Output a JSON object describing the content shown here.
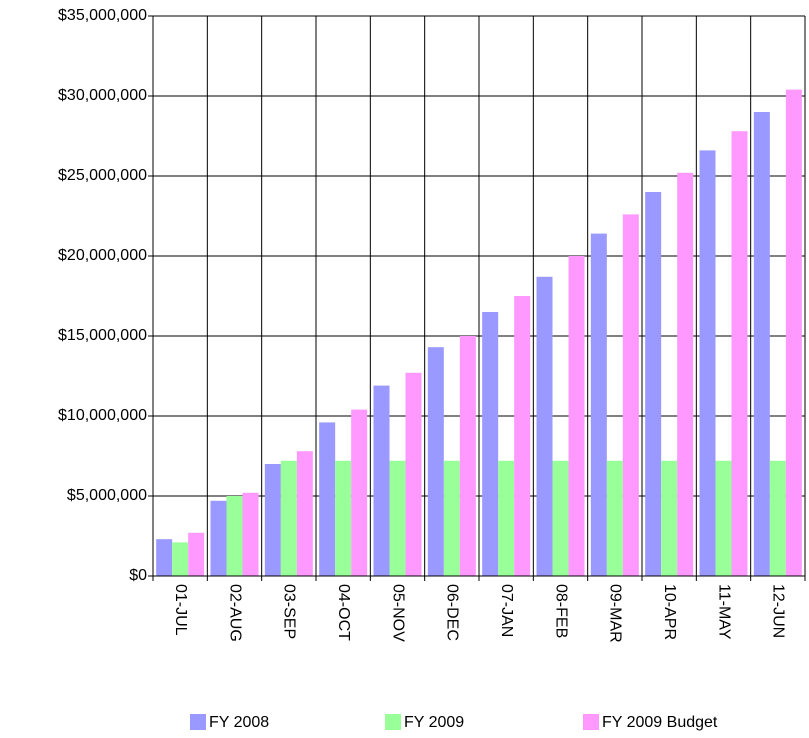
{
  "chart_data": {
    "type": "bar",
    "categories": [
      "01-JUL",
      "02-AUG",
      "03-SEP",
      "04-OCT",
      "05-NOV",
      "06-DEC",
      "07-JAN",
      "08-FEB",
      "09-MAR",
      "10-APR",
      "11-MAY",
      "12-JUN"
    ],
    "series": [
      {
        "name": "FY 2008",
        "color": "#9999ff",
        "values": [
          2300000,
          4700000,
          7000000,
          9600000,
          11900000,
          14300000,
          16500000,
          18700000,
          21400000,
          24000000,
          26600000,
          29000000
        ]
      },
      {
        "name": "FY 2009",
        "color": "#99ff99",
        "values": [
          2100000,
          5000000,
          7200000,
          7200000,
          7200000,
          7200000,
          7200000,
          7200000,
          7200000,
          7200000,
          7200000,
          7200000
        ]
      },
      {
        "name": "FY 2009 Budget",
        "color": "#ff99ff",
        "values": [
          2700000,
          5200000,
          7800000,
          10400000,
          12700000,
          15000000,
          17500000,
          20000000,
          22600000,
          25200000,
          27800000,
          30400000
        ]
      }
    ],
    "ylim": [
      0,
      35000000
    ],
    "yticks": [
      {
        "value": 0,
        "label": "$0"
      },
      {
        "value": 5000000,
        "label": "$5,000,000"
      },
      {
        "value": 10000000,
        "label": "$10,000,000"
      },
      {
        "value": 15000000,
        "label": "$15,000,000"
      },
      {
        "value": 20000000,
        "label": "$20,000,000"
      },
      {
        "value": 25000000,
        "label": "$25,000,000"
      },
      {
        "value": 30000000,
        "label": "$30,000,000"
      },
      {
        "value": 35000000,
        "label": "$35,000,000"
      }
    ],
    "grid": true
  }
}
